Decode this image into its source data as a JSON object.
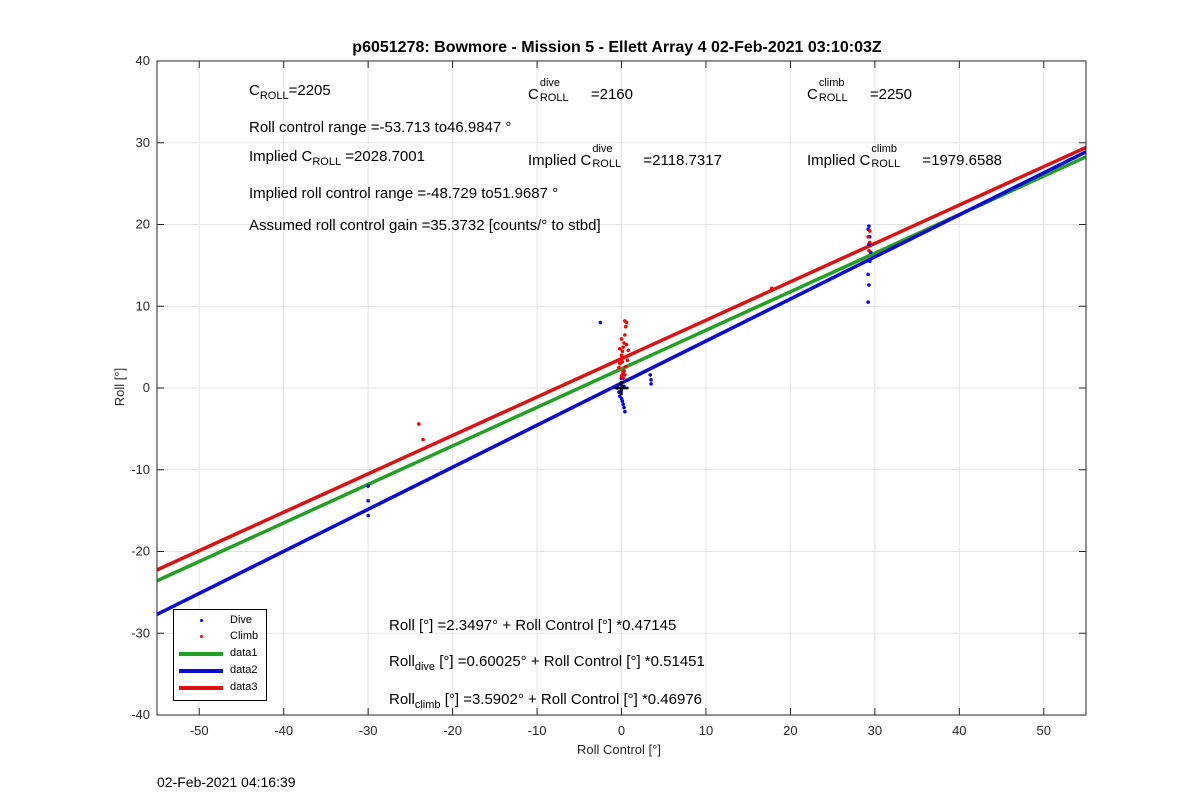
{
  "chart_data": {
    "type": "scatter",
    "title": "p6051278: Bowmore - Mission 5 - Ellett Array 4 02-Feb-2021 03:10:03Z",
    "xlabel": "Roll Control [°]",
    "ylabel": "Roll [°]",
    "xlim": [
      -55,
      55
    ],
    "ylim": [
      -40,
      40
    ],
    "xticks": [
      -50,
      -40,
      -30,
      -20,
      -10,
      0,
      10,
      20,
      30,
      40,
      50
    ],
    "yticks": [
      -40,
      -30,
      -20,
      -10,
      0,
      10,
      20,
      30,
      40
    ],
    "grid": true,
    "legend_position": "bottom-left",
    "series": [
      {
        "name": "Dive",
        "kind": "points",
        "color": "#0000ff",
        "x": [
          -30,
          -30,
          -30,
          -2.5,
          -0.5,
          -0.3,
          -0.2,
          0.0,
          0.1,
          0.2,
          0.3,
          0.4,
          -0.1,
          0.0,
          0.2,
          0.0,
          0.3,
          3.5,
          3.5,
          3.4,
          29.2,
          29.3,
          29.2,
          29.4,
          29.5,
          29.3,
          29.4,
          29.2,
          29.3
        ],
        "y": [
          -12.0,
          -13.8,
          -15.6,
          8.0,
          0.0,
          -0.5,
          -1.0,
          -1.3,
          -1.6,
          -2.0,
          -2.4,
          -2.9,
          0.5,
          1.2,
          1.8,
          -0.2,
          0.2,
          0.5,
          1.0,
          1.6,
          10.5,
          12.6,
          13.9,
          15.5,
          16.6,
          17.6,
          18.5,
          19.4,
          19.8
        ]
      },
      {
        "name": "Climb",
        "kind": "points",
        "color": "#ff0000",
        "x": [
          -24.0,
          -23.5,
          -0.3,
          -0.2,
          -0.1,
          0.0,
          0.1,
          0.2,
          0.3,
          0.0,
          0.1,
          -0.2,
          0.2,
          0.0,
          0.4,
          0.5,
          0.6,
          0.4,
          0.6,
          0.8,
          0.7,
          0.5,
          0.3,
          0.4,
          0.2,
          17.8,
          29.3,
          29.4,
          29.2,
          29.4
        ],
        "y": [
          -4.4,
          -6.3,
          2.5,
          3.0,
          3.5,
          4.0,
          4.5,
          5.0,
          5.5,
          6.0,
          3.2,
          4.8,
          2.0,
          1.5,
          8.2,
          7.5,
          8.0,
          6.5,
          5.3,
          4.6,
          3.4,
          2.6,
          2.1,
          1.6,
          1.2,
          12.2,
          16.8,
          17.8,
          18.5,
          19.2
        ]
      },
      {
        "name": "data1",
        "kind": "line",
        "color": "#22a022",
        "intercept": 2.3497,
        "slope": 0.47145
      },
      {
        "name": "data2",
        "kind": "line",
        "color": "#0a0ad0",
        "intercept": 0.60025,
        "slope": 0.51451
      },
      {
        "name": "data3",
        "kind": "line",
        "color": "#dd1111",
        "intercept": 3.5902,
        "slope": 0.46976
      }
    ],
    "annotations": {
      "c_roll": "=2205",
      "c_roll_dive": "=2160",
      "c_roll_climb": "=2250",
      "roll_control_range": "Roll control range =-53.713 to46.9847 °",
      "implied_c_roll": "=2028.7001",
      "implied_c_roll_dive": "=2118.7317",
      "implied_c_roll_climb": "=1979.6588",
      "implied_roll_range": "Implied roll control range =-48.729 to51.9687 °",
      "gain": "Assumed roll control gain =35.3732 [counts/° to stbd]",
      "fit_all": "Roll [°] =2.3497° + Roll Control [°] *0.47145",
      "fit_dive": "[°] =0.60025° + Roll Control [°] *0.51451",
      "fit_climb": "[°] =3.5902° + Roll Control [°] *0.46976"
    },
    "label_text": {
      "c": "C",
      "roll_sub": "ROLL",
      "dive_sup": "dive",
      "climb_sup": "climb",
      "implied": "Implied C",
      "roll_word": "Roll",
      "dive_sub": "dive",
      "climb_sub": "climb"
    }
  },
  "timestamp": "02-Feb-2021 04:16:39"
}
